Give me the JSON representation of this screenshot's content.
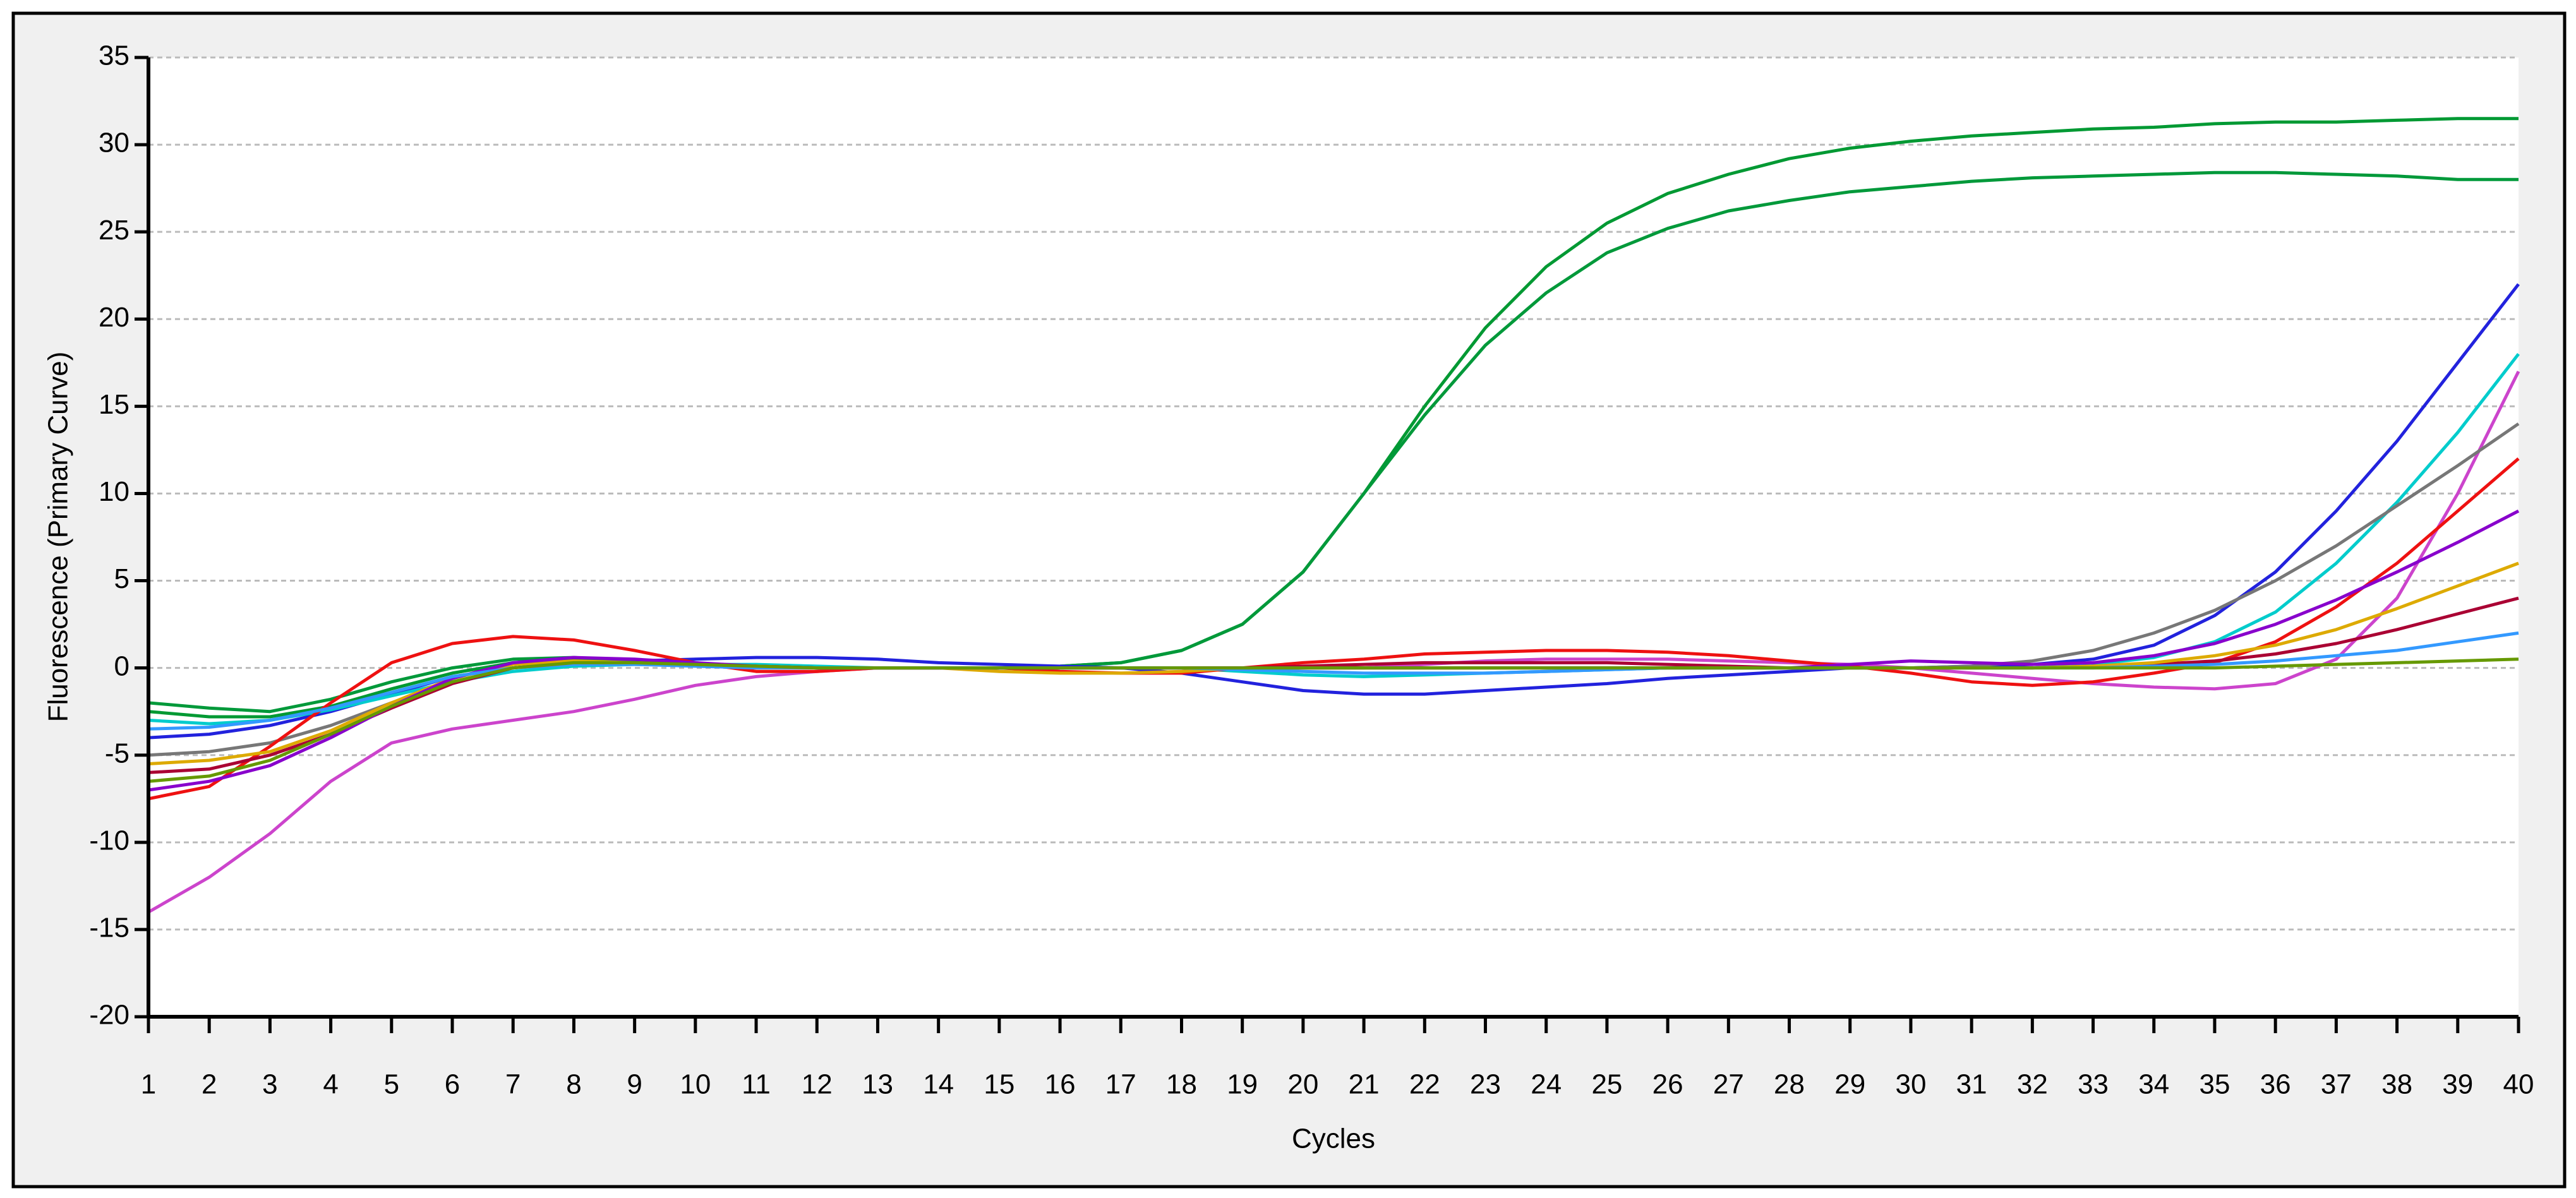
{
  "chart_data": {
    "type": "line",
    "x_label": "Cycles",
    "y_label": "Fluorescence (Primary Curve)",
    "x": [
      1,
      2,
      3,
      4,
      5,
      6,
      7,
      8,
      9,
      10,
      11,
      12,
      13,
      14,
      15,
      16,
      17,
      18,
      19,
      20,
      21,
      22,
      23,
      24,
      25,
      26,
      27,
      28,
      29,
      30,
      31,
      32,
      33,
      34,
      35,
      36,
      37,
      38,
      39,
      40
    ],
    "xlim": [
      1,
      40
    ],
    "xticks": [
      1,
      2,
      3,
      4,
      5,
      6,
      7,
      8,
      9,
      10,
      11,
      12,
      13,
      14,
      15,
      16,
      17,
      18,
      19,
      20,
      21,
      22,
      23,
      24,
      25,
      26,
      27,
      28,
      29,
      30,
      31,
      32,
      33,
      34,
      35,
      36,
      37,
      38,
      39,
      40
    ],
    "ylim": [
      -20,
      35
    ],
    "yticks": [
      -20,
      -15,
      -10,
      -5,
      0,
      5,
      10,
      15,
      20,
      25,
      30,
      35
    ],
    "grid": true,
    "series": [
      {
        "color": "#009933",
        "values": [
          -2.5,
          -2.8,
          -2.8,
          -2.2,
          -1.2,
          -0.3,
          0.3,
          0.5,
          0.4,
          0.2,
          0.1,
          0,
          0,
          0,
          0,
          0.1,
          0.3,
          1,
          2.5,
          5.5,
          10,
          15,
          19.5,
          23,
          25.5,
          27.2,
          28.3,
          29.2,
          29.8,
          30.2,
          30.5,
          30.7,
          30.9,
          31,
          31.2,
          31.3,
          31.3,
          31.4,
          31.5,
          31.5
        ]
      },
      {
        "color": "#00993a",
        "values": [
          -2,
          -2.3,
          -2.5,
          -1.8,
          -0.8,
          0,
          0.5,
          0.6,
          0.4,
          0.2,
          0.1,
          0,
          0,
          0,
          0,
          0.1,
          0.3,
          1,
          2.5,
          5.5,
          10,
          14.5,
          18.5,
          21.5,
          23.8,
          25.2,
          26.2,
          26.8,
          27.3,
          27.6,
          27.9,
          28.1,
          28.2,
          28.3,
          28.4,
          28.4,
          28.3,
          28.2,
          28,
          28
        ]
      },
      {
        "color": "#2222dd",
        "values": [
          -4,
          -3.8,
          -3.3,
          -2.5,
          -1.5,
          -0.5,
          0,
          0.3,
          0.4,
          0.5,
          0.6,
          0.6,
          0.5,
          0.3,
          0.2,
          0.1,
          0,
          -0.3,
          -0.8,
          -1.3,
          -1.5,
          -1.5,
          -1.3,
          -1.1,
          -0.9,
          -0.6,
          -0.4,
          -0.2,
          0,
          0,
          0.1,
          0.2,
          0.5,
          1.3,
          3,
          5.5,
          9,
          13,
          17.5,
          22
        ]
      },
      {
        "color": "#00cccc",
        "values": [
          -3,
          -3.2,
          -3,
          -2.4,
          -1.6,
          -0.8,
          -0.2,
          0.1,
          0.2,
          0.2,
          0.2,
          0.1,
          0,
          0,
          0,
          0,
          0,
          0,
          -0.2,
          -0.4,
          -0.5,
          -0.4,
          -0.3,
          -0.2,
          -0.1,
          0,
          0,
          0,
          0,
          0,
          0,
          0,
          0.2,
          0.6,
          1.5,
          3.2,
          6,
          9.5,
          13.5,
          18
        ]
      },
      {
        "color": "#cc44cc",
        "values": [
          -14,
          -12,
          -9.5,
          -6.5,
          -4.3,
          -3.5,
          -3,
          -2.5,
          -1.8,
          -1,
          -0.5,
          -0.2,
          0,
          0,
          0,
          0,
          0,
          0,
          0,
          0,
          0,
          0.2,
          0.4,
          0.5,
          0.5,
          0.5,
          0.4,
          0.3,
          0.2,
          0,
          -0.3,
          -0.6,
          -0.9,
          -1.1,
          -1.2,
          -0.9,
          0.5,
          4,
          10,
          17
        ]
      },
      {
        "color": "#777777",
        "values": [
          -5,
          -4.8,
          -4.3,
          -3.3,
          -2,
          -0.8,
          0,
          0.3,
          0.3,
          0.2,
          0.1,
          0,
          0,
          0,
          0,
          0,
          0,
          0,
          0,
          0,
          0,
          0,
          0,
          0,
          0,
          0,
          0,
          0,
          0,
          0,
          0.1,
          0.4,
          1,
          2,
          3.3,
          5,
          7,
          9.3,
          11.6,
          14
        ]
      },
      {
        "color": "#ee1111",
        "values": [
          -7.5,
          -6.8,
          -4.5,
          -2,
          0.3,
          1.4,
          1.8,
          1.6,
          1,
          0.3,
          -0.2,
          -0.2,
          0,
          0,
          0,
          -0.2,
          -0.3,
          -0.3,
          0,
          0.3,
          0.5,
          0.8,
          0.9,
          1,
          1,
          0.9,
          0.7,
          0.4,
          0.1,
          -0.3,
          -0.8,
          -1,
          -0.8,
          -0.3,
          0.3,
          1.5,
          3.5,
          6,
          9,
          12
        ]
      },
      {
        "color": "#aa0033",
        "values": [
          -6,
          -5.8,
          -5,
          -3.8,
          -2.3,
          -0.9,
          0,
          0.3,
          0.3,
          0.2,
          0.1,
          0,
          0,
          0,
          0,
          0,
          0,
          0,
          0,
          0.1,
          0.2,
          0.3,
          0.3,
          0.3,
          0.3,
          0.2,
          0.1,
          0,
          0,
          0,
          0,
          0,
          0.1,
          0.2,
          0.4,
          0.8,
          1.4,
          2.2,
          3.1,
          4
        ]
      },
      {
        "color": "#ddaa00",
        "values": [
          -5.5,
          -5.3,
          -4.8,
          -3.6,
          -2,
          -0.6,
          0.2,
          0.4,
          0.3,
          0.2,
          0,
          0,
          0,
          0,
          -0.2,
          -0.3,
          -0.3,
          -0.2,
          0,
          0,
          0,
          0,
          0,
          0,
          0,
          0,
          0,
          0,
          0,
          0,
          0,
          0,
          0.1,
          0.3,
          0.7,
          1.3,
          2.2,
          3.4,
          4.7,
          6
        ]
      },
      {
        "color": "#8800cc",
        "values": [
          -7,
          -6.5,
          -5.6,
          -4,
          -2.2,
          -0.6,
          0.3,
          0.6,
          0.5,
          0.3,
          0.1,
          0,
          0,
          0,
          0,
          0,
          0,
          0,
          0,
          0,
          0,
          0,
          0,
          0,
          0,
          0,
          0,
          0,
          0.2,
          0.4,
          0.3,
          0.2,
          0.3,
          0.7,
          1.4,
          2.5,
          3.9,
          5.5,
          7.2,
          9
        ]
      },
      {
        "color": "#3399ff",
        "values": [
          -3.5,
          -3.4,
          -3,
          -2.3,
          -1.4,
          -0.5,
          0,
          0.2,
          0.2,
          0.1,
          0,
          0,
          0,
          0,
          0,
          0,
          0,
          0,
          -0.1,
          -0.2,
          -0.3,
          -0.3,
          -0.3,
          -0.2,
          -0.1,
          0,
          0,
          0,
          0,
          0,
          0,
          0,
          0,
          0.1,
          0.2,
          0.4,
          0.7,
          1,
          1.5,
          2
        ]
      },
      {
        "color": "#669900",
        "values": [
          -6.5,
          -6.2,
          -5.3,
          -3.8,
          -2.2,
          -0.8,
          0,
          0.3,
          0.3,
          0.2,
          0.1,
          0,
          0,
          0,
          0,
          0,
          0,
          0,
          0,
          0,
          0,
          0,
          0,
          0,
          0,
          0,
          0,
          0,
          0,
          0,
          0,
          0,
          0,
          0,
          0,
          0.1,
          0.2,
          0.3,
          0.4,
          0.5
        ]
      }
    ]
  }
}
